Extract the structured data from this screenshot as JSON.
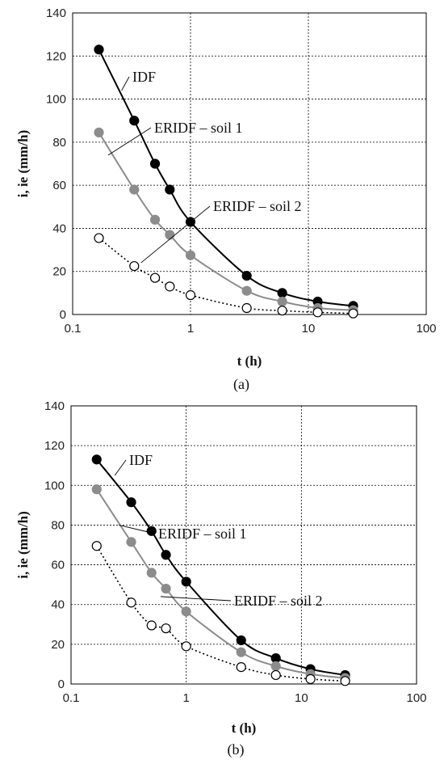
{
  "chart_data": [
    {
      "type": "scatter",
      "panel_label": "(a)",
      "xlabel": "t (h)",
      "ylabel": "i, ie (mm/h)",
      "xscale": "log",
      "xlim": [
        0.1,
        100
      ],
      "ylim": [
        0,
        140
      ],
      "x_ticks": [
        "0.1",
        "1",
        "10",
        "100"
      ],
      "y_ticks": [
        "0",
        "20",
        "40",
        "60",
        "80",
        "100",
        "120",
        "140"
      ],
      "grid": true,
      "colors": {
        "IDF": "#000000",
        "ERIDF – soil 1": "#8c8c8c",
        "ERIDF – soil 2": "#000000"
      },
      "series": [
        {
          "name": "IDF",
          "x": [
            0.167,
            0.333,
            0.5,
            0.667,
            1,
            3,
            6,
            12,
            24
          ],
          "y": [
            123,
            90,
            70,
            58,
            43,
            18,
            10,
            6,
            4
          ]
        },
        {
          "name": "ERIDF – soil 1",
          "x": [
            0.167,
            0.333,
            0.5,
            0.667,
            1,
            3,
            6,
            12,
            24
          ],
          "y": [
            84.5,
            58,
            44,
            37,
            27.5,
            11,
            6,
            3,
            2
          ]
        },
        {
          "name": "ERIDF – soil 2",
          "x": [
            0.167,
            0.333,
            0.5,
            0.667,
            1,
            3,
            6,
            12,
            24
          ],
          "y": [
            35.5,
            22.5,
            17,
            13,
            9,
            3,
            1.8,
            1,
            0.5
          ]
        }
      ],
      "annotations": [
        {
          "text": "IDF",
          "target_x": 0.26,
          "target_y": 104
        },
        {
          "text": "ERIDF – soil 1",
          "target_x": 0.2,
          "target_y": 74
        },
        {
          "text": "ERIDF – soil 2",
          "target_x": 0.38,
          "target_y": 24
        }
      ]
    },
    {
      "type": "scatter",
      "panel_label": "(b)",
      "xlabel": "t (h)",
      "ylabel": "i, ie (mm/h)",
      "xscale": "log",
      "xlim": [
        0.1,
        100
      ],
      "ylim": [
        0,
        140
      ],
      "x_ticks": [
        "0.1",
        "1",
        "10",
        "100"
      ],
      "y_ticks": [
        "0",
        "20",
        "40",
        "60",
        "80",
        "100",
        "120",
        "140"
      ],
      "grid": true,
      "colors": {
        "IDF": "#000000",
        "ERIDF – soil 1": "#8c8c8c",
        "ERIDF – soil 2": "#000000"
      },
      "series": [
        {
          "name": "IDF",
          "x": [
            0.167,
            0.333,
            0.5,
            0.667,
            1,
            3,
            6,
            12,
            24
          ],
          "y": [
            113,
            91.5,
            77,
            65,
            51.5,
            22,
            13,
            7.5,
            4.5
          ]
        },
        {
          "name": "ERIDF – soil 1",
          "x": [
            0.167,
            0.333,
            0.5,
            0.667,
            1,
            3,
            6,
            12,
            24
          ],
          "y": [
            98,
            71.5,
            56,
            48,
            36.5,
            16,
            9,
            5,
            3
          ]
        },
        {
          "name": "ERIDF – soil 2",
          "x": [
            0.167,
            0.333,
            0.5,
            0.667,
            1,
            3,
            6,
            12,
            24
          ],
          "y": [
            69.5,
            41,
            29.5,
            28,
            19,
            8.5,
            4.5,
            2.5,
            1.5
          ]
        }
      ],
      "annotations": [
        {
          "text": "IDF",
          "target_x": 0.24,
          "target_y": 105
        },
        {
          "text": "ERIDF – soil 1",
          "target_x": 0.26,
          "target_y": 80
        },
        {
          "text": "ERIDF – soil 2",
          "target_x": 0.6,
          "target_y": 44
        }
      ]
    }
  ]
}
